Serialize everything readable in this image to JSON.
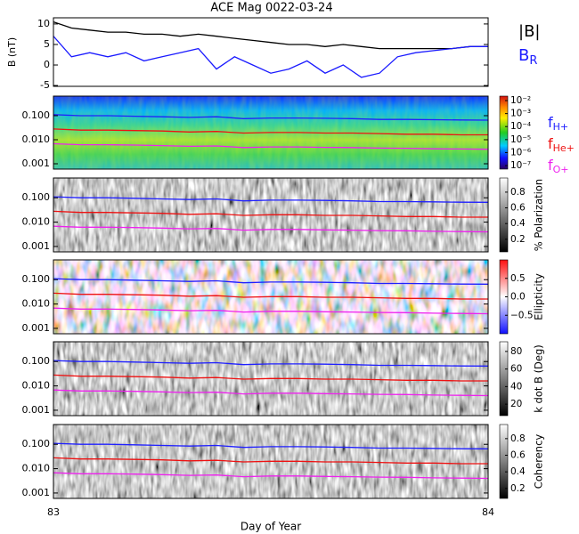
{
  "chart_data": [
    {
      "type": "line",
      "title": "ACE Mag 0022-03-24",
      "ylabel": "B (nT)",
      "ylim": [
        -5.2,
        11.5
      ],
      "yticks": [
        -5,
        0,
        5,
        10
      ],
      "xlim": [
        83,
        84
      ],
      "x": [
        83,
        83.0417,
        83.0833,
        83.125,
        83.1667,
        83.2083,
        83.25,
        83.2917,
        83.3333,
        83.375,
        83.4167,
        83.4583,
        83.5,
        83.5417,
        83.5833,
        83.625,
        83.6667,
        83.7083,
        83.75,
        83.7917,
        83.8333,
        83.875,
        83.9167,
        83.9583,
        84
      ],
      "series": [
        {
          "name": "|B|",
          "color": "#000000",
          "values": [
            10.5,
            9,
            8.5,
            8,
            8,
            7.5,
            7.5,
            7,
            7.5,
            7,
            6.5,
            6,
            5.5,
            5,
            5,
            4.5,
            5,
            4.5,
            4,
            4,
            4,
            4,
            4,
            4.5,
            4.5
          ]
        },
        {
          "name": "B",
          "subscript": "R",
          "color": "#1a1aff",
          "values": [
            7,
            2,
            3,
            2,
            3,
            1,
            2,
            3,
            4,
            -1,
            2,
            0,
            -2,
            -1,
            1,
            -2,
            0,
            -3,
            -2,
            2,
            3,
            3.5,
            4,
            4.5,
            4.5
          ]
        }
      ]
    },
    {
      "type": "line",
      "ylog": true,
      "colormap": "rainbow",
      "ylim": [
        0.0006,
        0.65
      ],
      "yticks": [
        {
          "value": 0.1,
          "label": "0.100"
        },
        {
          "value": 0.01,
          "label": "0.010"
        },
        {
          "value": 0.001,
          "label": "0.001"
        }
      ],
      "xlim": [
        83,
        84
      ],
      "x": [
        83,
        83.0625,
        83.125,
        83.1875,
        83.25,
        83.3125,
        83.375,
        83.4375,
        83.5,
        83.5625,
        83.625,
        83.6875,
        83.75,
        83.8125,
        83.875,
        83.9375,
        84
      ],
      "colorbar": {
        "log": true,
        "clim": [
          0.022,
          5.4e-08
        ],
        "ticks": [
          {
            "value": 0.01,
            "label": "10⁻²"
          },
          {
            "value": 0.001,
            "label": "10⁻³"
          },
          {
            "value": 0.0001,
            "label": "10⁻⁴"
          },
          {
            "value": 1e-05,
            "label": "10⁻⁵"
          },
          {
            "value": 1e-06,
            "label": "10⁻⁶"
          },
          {
            "value": 1e-07,
            "label": "10⁻⁷"
          }
        ]
      },
      "series": [
        {
          "name": "f",
          "subscript": "H+",
          "color": "#2020ff",
          "values": [
            0.11,
            0.1,
            0.1,
            0.095,
            0.09,
            0.085,
            0.09,
            0.075,
            0.08,
            0.08,
            0.078,
            0.075,
            0.07,
            0.07,
            0.068,
            0.066,
            0.065
          ]
        },
        {
          "name": "f",
          "subscript": "He+",
          "color": "#ee1111",
          "values": [
            0.028,
            0.025,
            0.025,
            0.024,
            0.023,
            0.021,
            0.022,
            0.019,
            0.02,
            0.02,
            0.019,
            0.019,
            0.018,
            0.017,
            0.017,
            0.016,
            0.016
          ]
        },
        {
          "name": "f",
          "subscript": "O+",
          "color": "#ee22ee",
          "values": [
            0.0068,
            0.0062,
            0.0062,
            0.006,
            0.0057,
            0.0053,
            0.0055,
            0.0047,
            0.005,
            0.005,
            0.0048,
            0.0047,
            0.0045,
            0.0044,
            0.0042,
            0.0041,
            0.004
          ]
        }
      ]
    },
    {
      "type": "line",
      "ylog": true,
      "colormap": "gray",
      "ylim": [
        0.0006,
        0.65
      ],
      "yticks": [
        {
          "value": 0.1,
          "label": "0.100"
        },
        {
          "value": 0.01,
          "label": "0.010"
        },
        {
          "value": 0.001,
          "label": "0.001"
        }
      ],
      "xlim": [
        83,
        84
      ],
      "x": [
        83,
        83.0625,
        83.125,
        83.1875,
        83.25,
        83.3125,
        83.375,
        83.4375,
        83.5,
        83.5625,
        83.625,
        83.6875,
        83.75,
        83.8125,
        83.875,
        83.9375,
        84
      ],
      "colorbar": {
        "label": "% Polarization",
        "clim": [
          0.98,
          0.04
        ],
        "ticks": [
          0.8,
          0.6,
          0.4,
          0.2
        ]
      },
      "series": [
        {
          "color": "#2020ff",
          "values": [
            0.11,
            0.1,
            0.1,
            0.095,
            0.09,
            0.085,
            0.09,
            0.075,
            0.08,
            0.08,
            0.078,
            0.075,
            0.07,
            0.07,
            0.068,
            0.066,
            0.065
          ]
        },
        {
          "color": "#ee1111",
          "values": [
            0.028,
            0.025,
            0.025,
            0.024,
            0.023,
            0.021,
            0.022,
            0.019,
            0.02,
            0.02,
            0.019,
            0.019,
            0.018,
            0.017,
            0.017,
            0.016,
            0.016
          ]
        },
        {
          "color": "#ee22ee",
          "values": [
            0.0068,
            0.0062,
            0.0062,
            0.006,
            0.0057,
            0.0053,
            0.0055,
            0.0047,
            0.005,
            0.005,
            0.0048,
            0.0047,
            0.0045,
            0.0044,
            0.0042,
            0.0041,
            0.004
          ]
        }
      ]
    },
    {
      "type": "line",
      "ylog": true,
      "colormap": "bwr",
      "ylim": [
        0.0006,
        0.65
      ],
      "yticks": [
        {
          "value": 0.1,
          "label": "0.100"
        },
        {
          "value": 0.01,
          "label": "0.010"
        },
        {
          "value": 0.001,
          "label": "0.001"
        }
      ],
      "xlim": [
        83,
        84
      ],
      "x": [
        83,
        83.0625,
        83.125,
        83.1875,
        83.25,
        83.3125,
        83.375,
        83.4375,
        83.5,
        83.5625,
        83.625,
        83.6875,
        83.75,
        83.8125,
        83.875,
        83.9375,
        84
      ],
      "colorbar": {
        "label": "Ellipticity",
        "clim": [
          1,
          -1
        ],
        "ticks": [
          0.5,
          {
            "value": 0,
            "label": "0.0"
          },
          {
            "value": -0.5,
            "label": "−0.5"
          }
        ]
      },
      "series": [
        {
          "color": "#2020ff",
          "values": [
            0.11,
            0.1,
            0.1,
            0.095,
            0.09,
            0.085,
            0.09,
            0.075,
            0.08,
            0.08,
            0.078,
            0.075,
            0.07,
            0.07,
            0.068,
            0.066,
            0.065
          ]
        },
        {
          "color": "#ee1111",
          "values": [
            0.028,
            0.025,
            0.025,
            0.024,
            0.023,
            0.021,
            0.022,
            0.019,
            0.02,
            0.02,
            0.019,
            0.019,
            0.018,
            0.017,
            0.017,
            0.016,
            0.016
          ]
        },
        {
          "color": "#ee22ee",
          "values": [
            0.0068,
            0.0062,
            0.0062,
            0.006,
            0.0057,
            0.0053,
            0.0055,
            0.0047,
            0.005,
            0.005,
            0.0048,
            0.0047,
            0.0045,
            0.0044,
            0.0042,
            0.0041,
            0.004
          ]
        }
      ]
    },
    {
      "type": "line",
      "ylog": true,
      "colormap": "gray",
      "ylim": [
        0.0006,
        0.65
      ],
      "yticks": [
        {
          "value": 0.1,
          "label": "0.100"
        },
        {
          "value": 0.01,
          "label": "0.010"
        },
        {
          "value": 0.001,
          "label": "0.001"
        }
      ],
      "xlim": [
        83,
        84
      ],
      "x": [
        83,
        83.0625,
        83.125,
        83.1875,
        83.25,
        83.3125,
        83.375,
        83.4375,
        83.5,
        83.5625,
        83.625,
        83.6875,
        83.75,
        83.8125,
        83.875,
        83.9375,
        84
      ],
      "colorbar": {
        "label": "k dot B (Deg)",
        "clim": [
          91,
          7
        ],
        "ticks": [
          80,
          60,
          40,
          20
        ]
      },
      "series": [
        {
          "color": "#2020ff",
          "values": [
            0.11,
            0.1,
            0.1,
            0.095,
            0.09,
            0.085,
            0.09,
            0.075,
            0.08,
            0.08,
            0.078,
            0.075,
            0.07,
            0.07,
            0.068,
            0.066,
            0.065
          ]
        },
        {
          "color": "#ee1111",
          "values": [
            0.028,
            0.025,
            0.025,
            0.024,
            0.023,
            0.021,
            0.022,
            0.019,
            0.02,
            0.02,
            0.019,
            0.019,
            0.018,
            0.017,
            0.017,
            0.016,
            0.016
          ]
        },
        {
          "color": "#ee22ee",
          "values": [
            0.0068,
            0.0062,
            0.0062,
            0.006,
            0.0057,
            0.0053,
            0.0055,
            0.0047,
            0.005,
            0.005,
            0.0048,
            0.0047,
            0.0045,
            0.0044,
            0.0042,
            0.0041,
            0.004
          ]
        }
      ]
    },
    {
      "type": "line",
      "ylog": true,
      "colormap": "gray",
      "ylim": [
        0.0006,
        0.65
      ],
      "yticks": [
        {
          "value": 0.1,
          "label": "0.100"
        },
        {
          "value": 0.01,
          "label": "0.010"
        },
        {
          "value": 0.001,
          "label": "0.001"
        }
      ],
      "xlim": [
        83,
        84
      ],
      "xticks": [
        83,
        84
      ],
      "xlabel": "Day of Year",
      "x": [
        83,
        83.0625,
        83.125,
        83.1875,
        83.25,
        83.3125,
        83.375,
        83.4375,
        83.5,
        83.5625,
        83.625,
        83.6875,
        83.75,
        83.8125,
        83.875,
        83.9375,
        84
      ],
      "colorbar": {
        "label": "Coherency",
        "clim": [
          0.97,
          0.08
        ],
        "ticks": [
          0.8,
          0.6,
          0.4,
          0.2
        ]
      },
      "series": [
        {
          "color": "#2020ff",
          "values": [
            0.11,
            0.1,
            0.1,
            0.095,
            0.09,
            0.085,
            0.09,
            0.075,
            0.08,
            0.08,
            0.078,
            0.075,
            0.07,
            0.07,
            0.068,
            0.066,
            0.065
          ]
        },
        {
          "color": "#ee1111",
          "values": [
            0.028,
            0.025,
            0.025,
            0.024,
            0.023,
            0.021,
            0.022,
            0.019,
            0.02,
            0.02,
            0.019,
            0.019,
            0.018,
            0.017,
            0.017,
            0.016,
            0.016
          ]
        },
        {
          "color": "#ee22ee",
          "values": [
            0.0068,
            0.0062,
            0.0062,
            0.006,
            0.0057,
            0.0053,
            0.0055,
            0.0047,
            0.005,
            0.005,
            0.0048,
            0.0047,
            0.0045,
            0.0044,
            0.0042,
            0.0041,
            0.004
          ]
        }
      ]
    }
  ]
}
